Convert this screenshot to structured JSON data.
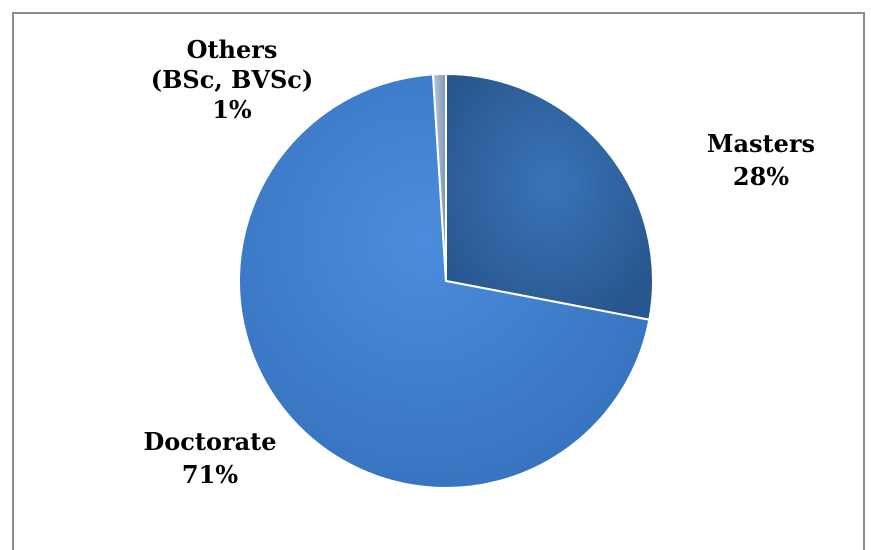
{
  "chart_data": {
    "type": "pie",
    "title": "",
    "slices": [
      {
        "name": "Masters",
        "value": 28,
        "label": "28%",
        "color": "#2e63a0",
        "text_lines": [
          "Masters",
          "28%"
        ]
      },
      {
        "name": "Doctorate",
        "value": 71,
        "label": "71%",
        "color": "#3f80d3",
        "text_lines": [
          "Doctorate",
          "71%"
        ]
      },
      {
        "name": "Others (BSc, BVSc)",
        "value": 1,
        "label": "1%",
        "color": "#9fb1cc",
        "text_lines": [
          "Others",
          "(BSc, BVSc)",
          "1%"
        ]
      }
    ],
    "legend": "none",
    "start_angle_deg": 0,
    "direction": "clockwise"
  }
}
